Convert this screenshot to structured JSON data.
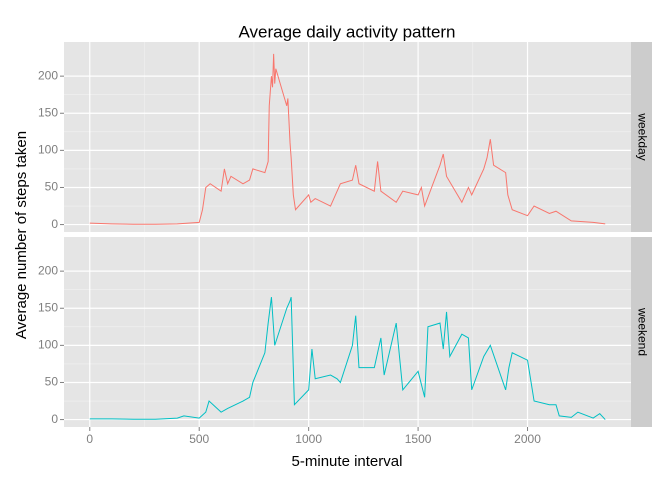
{
  "chart_data": {
    "type": "line",
    "title": "Average daily activity pattern",
    "x_label": "5-minute interval",
    "y_label": "Average number of steps taken",
    "facet": "rows",
    "grid": true,
    "xlim": [
      -117.75,
      2472.75
    ],
    "xticks": [
      0,
      500,
      1000,
      1500,
      2000
    ],
    "ylim": [
      -10,
      246
    ],
    "yticks": [
      0,
      50,
      100,
      150,
      200
    ],
    "series": [
      {
        "name": "weekday",
        "color": "#F8766D",
        "x": [
          0,
          100,
          200,
          300,
          400,
          500,
          515,
          530,
          550,
          600,
          615,
          630,
          645,
          700,
          730,
          745,
          800,
          815,
          820,
          830,
          835,
          840,
          845,
          850,
          900,
          905,
          915,
          920,
          930,
          940,
          1000,
          1010,
          1030,
          1100,
          1130,
          1145,
          1200,
          1215,
          1230,
          1300,
          1315,
          1330,
          1400,
          1430,
          1500,
          1515,
          1530,
          1600,
          1615,
          1630,
          1700,
          1730,
          1745,
          1800,
          1815,
          1830,
          1845,
          1900,
          1910,
          1930,
          2000,
          2030,
          2100,
          2130,
          2200,
          2300,
          2355
        ],
        "values": [
          2,
          1,
          0.5,
          0.5,
          1,
          3,
          20,
          50,
          55,
          45,
          75,
          55,
          65,
          55,
          60,
          75,
          70,
          85,
          160,
          200,
          185,
          230,
          190,
          210,
          160,
          170,
          110,
          90,
          40,
          20,
          40,
          30,
          35,
          25,
          45,
          55,
          60,
          80,
          55,
          45,
          85,
          45,
          30,
          45,
          40,
          50,
          25,
          80,
          95,
          65,
          30,
          50,
          40,
          75,
          90,
          115,
          80,
          70,
          40,
          20,
          12,
          25,
          15,
          18,
          5,
          3,
          1
        ]
      },
      {
        "name": "weekend",
        "color": "#00BFC4",
        "x": [
          0,
          100,
          200,
          300,
          400,
          430,
          500,
          530,
          545,
          600,
          630,
          700,
          730,
          745,
          800,
          815,
          830,
          845,
          900,
          915,
          920,
          935,
          1000,
          1015,
          1030,
          1100,
          1130,
          1145,
          1200,
          1215,
          1230,
          1300,
          1330,
          1345,
          1400,
          1430,
          1500,
          1530,
          1545,
          1600,
          1615,
          1630,
          1645,
          1700,
          1730,
          1745,
          1800,
          1830,
          1900,
          1915,
          1930,
          2000,
          2030,
          2100,
          2130,
          2145,
          2200,
          2230,
          2300,
          2330,
          2355
        ],
        "values": [
          1,
          1,
          0.5,
          0.5,
          2,
          5,
          2,
          10,
          25,
          10,
          15,
          25,
          30,
          50,
          90,
          130,
          165,
          100,
          150,
          160,
          165,
          20,
          40,
          95,
          55,
          60,
          55,
          50,
          100,
          140,
          70,
          70,
          110,
          60,
          130,
          40,
          65,
          30,
          125,
          130,
          95,
          145,
          85,
          115,
          110,
          40,
          85,
          100,
          40,
          70,
          90,
          80,
          25,
          20,
          20,
          5,
          3,
          10,
          2,
          8,
          0
        ]
      }
    ]
  }
}
